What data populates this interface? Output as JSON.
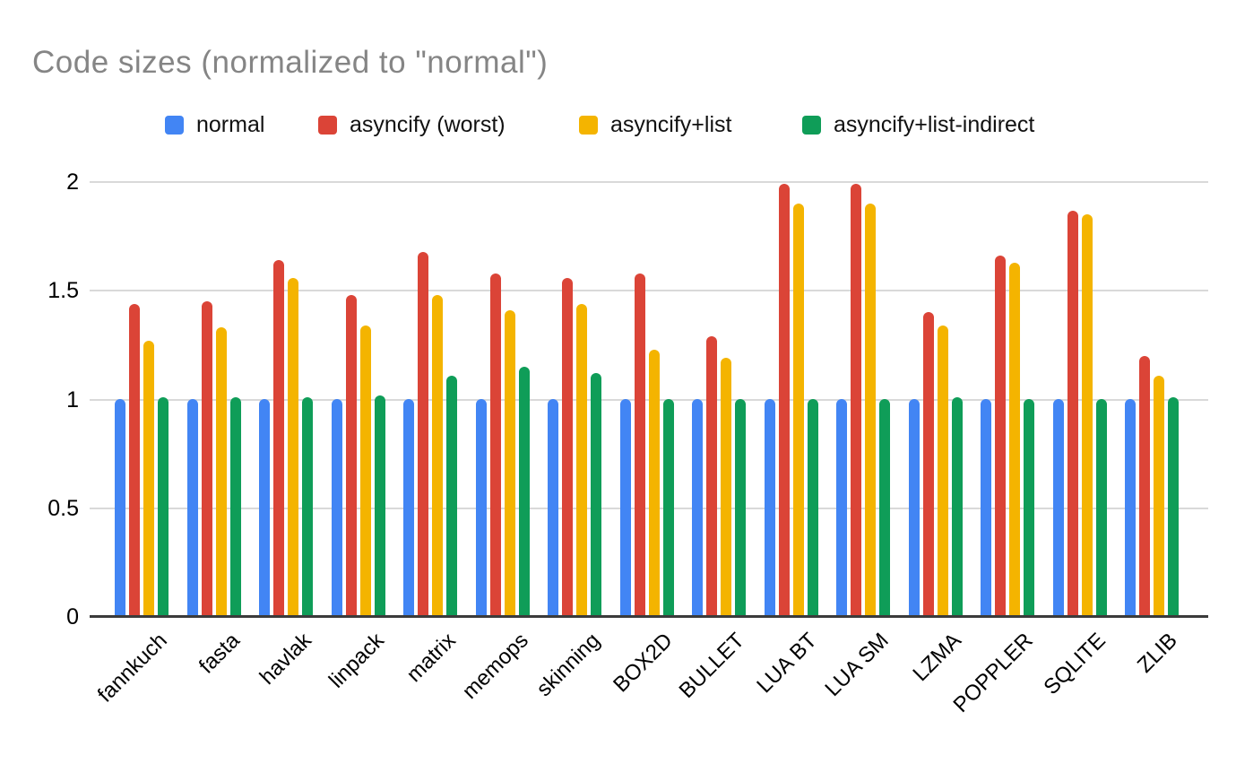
{
  "chart_data": {
    "type": "bar",
    "title": "Code sizes (normalized to \"normal\")",
    "xlabel": "",
    "ylabel": "",
    "ylim": [
      0,
      2
    ],
    "yticks": [
      "0",
      "0.5",
      "1",
      "1.5",
      "2"
    ],
    "grid": true,
    "legend_position": "top",
    "categories": [
      "fannkuch",
      "fasta",
      "havlak",
      "linpack",
      "matrix",
      "memops",
      "skinning",
      "BOX2D",
      "BULLET",
      "LUA BT",
      "LUA SM",
      "LZMA",
      "POPPLER",
      "SQLITE",
      "ZLIB"
    ],
    "series": [
      {
        "name": "normal",
        "color": "#4285F4",
        "values": [
          1.0,
          1.0,
          1.0,
          1.0,
          1.0,
          1.0,
          1.0,
          1.0,
          1.0,
          1.0,
          1.0,
          1.0,
          1.0,
          1.0,
          1.0
        ]
      },
      {
        "name": "asyncify (worst)",
        "color": "#DB4437",
        "values": [
          1.44,
          1.45,
          1.64,
          1.48,
          1.68,
          1.58,
          1.56,
          1.58,
          1.29,
          1.99,
          1.99,
          1.4,
          1.66,
          1.87,
          1.2
        ]
      },
      {
        "name": "asyncify+list",
        "color": "#F4B400",
        "values": [
          1.27,
          1.33,
          1.56,
          1.34,
          1.48,
          1.41,
          1.44,
          1.23,
          1.19,
          1.9,
          1.9,
          1.34,
          1.63,
          1.85,
          1.11
        ]
      },
      {
        "name": "asyncify+list-indirect",
        "color": "#0F9D58",
        "values": [
          1.01,
          1.01,
          1.01,
          1.02,
          1.11,
          1.15,
          1.12,
          1.0,
          1.0,
          1.0,
          1.0,
          1.01,
          1.0,
          1.0,
          1.01
        ]
      }
    ]
  },
  "palette": {
    "title_text": "#858585",
    "axis_text": "#000000",
    "gridline": "#d9d9d9",
    "axis_line": "#3b3b3b",
    "background": "#ffffff"
  }
}
